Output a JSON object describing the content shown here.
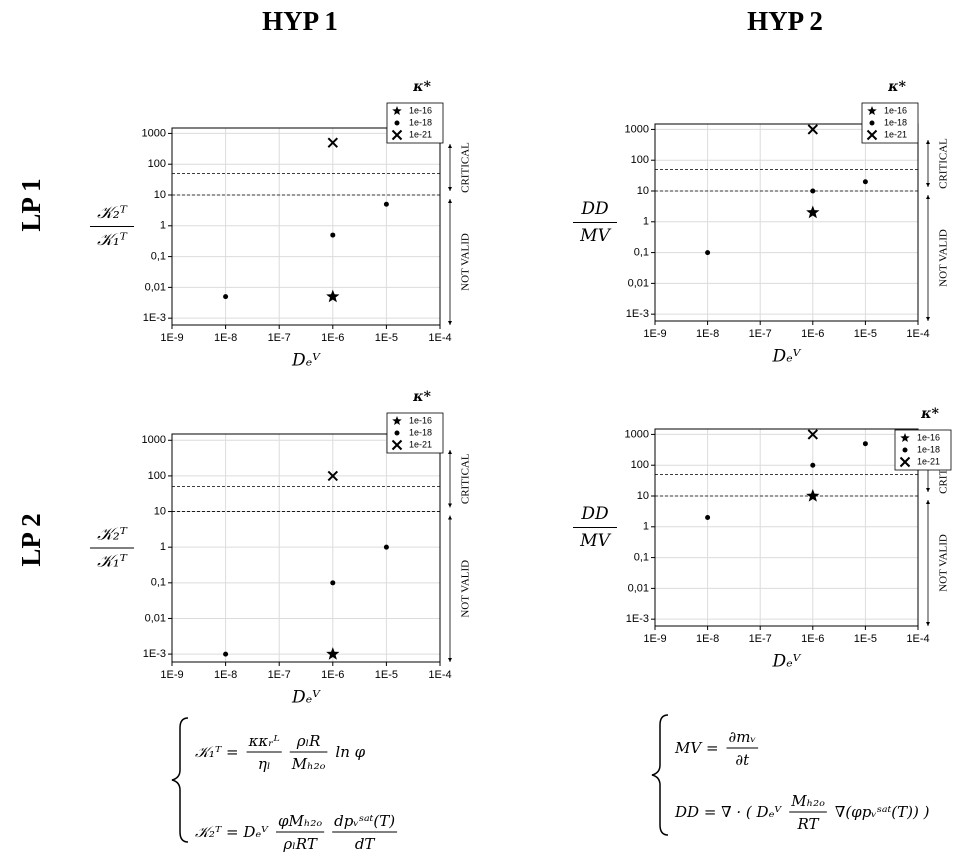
{
  "headers": {
    "columns": [
      "HYP 1",
      "HYP 2"
    ],
    "rows": [
      "LP 1",
      "LP 2"
    ]
  },
  "chart_data": [
    {
      "type": "scatter",
      "ylabel": {
        "num": "𝒦₂ᵀ",
        "den": "𝒦₁ᵀ"
      },
      "xlabel": "Dₑⱽ",
      "log_x": true,
      "log_y": true,
      "grid": true,
      "xlim": [
        1e-09,
        0.0001
      ],
      "ylim": [
        0.0006,
        1500
      ],
      "xticks": [
        {
          "value": 1e-09,
          "label": "1E-9"
        },
        {
          "value": 1e-08,
          "label": "1E-8"
        },
        {
          "value": 1e-07,
          "label": "1E-7"
        },
        {
          "value": 1e-06,
          "label": "1E-6"
        },
        {
          "value": 1e-05,
          "label": "1E-5"
        },
        {
          "value": 0.0001,
          "label": "1E-4"
        }
      ],
      "yticks": [
        1000,
        100,
        10,
        1,
        {
          "value": 0.1,
          "label": "0,1"
        },
        {
          "value": 0.01,
          "label": "0,01"
        },
        {
          "value": 0.001,
          "label": "1E-3"
        }
      ],
      "hlines": [
        50,
        10
      ],
      "annotations": [
        "CRITICAL",
        "NOT VALID"
      ],
      "legend_title": "κ*",
      "legend": "top-right",
      "series": [
        {
          "name": "1e-16",
          "marker": "star",
          "color": "#000000",
          "x": [
            1e-06
          ],
          "values": [
            0.005
          ]
        },
        {
          "name": "1e-18",
          "marker": "dot",
          "color": "#000000",
          "x": [
            1e-08,
            1e-06,
            1e-05
          ],
          "values": [
            0.005,
            0.5,
            5
          ]
        },
        {
          "name": "1e-21",
          "marker": "cross",
          "color": "#000000",
          "x": [
            1e-06
          ],
          "values": [
            500
          ]
        }
      ]
    },
    {
      "type": "scatter",
      "ylabel": {
        "num": "DD",
        "den": "MV"
      },
      "xlabel": "Dₑⱽ",
      "log_x": true,
      "log_y": true,
      "grid": true,
      "xlim": [
        1e-09,
        0.0001
      ],
      "ylim": [
        0.0006,
        1500
      ],
      "xticks": [
        {
          "value": 1e-09,
          "label": "1E-9"
        },
        {
          "value": 1e-08,
          "label": "1E-8"
        },
        {
          "value": 1e-07,
          "label": "1E-7"
        },
        {
          "value": 1e-06,
          "label": "1E-6"
        },
        {
          "value": 1e-05,
          "label": "1E-5"
        },
        {
          "value": 0.0001,
          "label": "1E-4"
        }
      ],
      "yticks": [
        1000,
        100,
        10,
        1,
        {
          "value": 0.1,
          "label": "0,1"
        },
        {
          "value": 0.01,
          "label": "0,01"
        },
        {
          "value": 0.001,
          "label": "1E-3"
        }
      ],
      "hlines": [
        50,
        10
      ],
      "annotations": [
        "CRITICAL",
        "NOT VALID"
      ],
      "legend_title": "κ*",
      "legend": "top-right",
      "series": [
        {
          "name": "1e-16",
          "marker": "star",
          "color": "#000000",
          "x": [
            1e-06
          ],
          "values": [
            2
          ]
        },
        {
          "name": "1e-18",
          "marker": "dot",
          "color": "#000000",
          "x": [
            1e-08,
            1e-06,
            1e-05
          ],
          "values": [
            0.1,
            10,
            20
          ]
        },
        {
          "name": "1e-21",
          "marker": "cross",
          "color": "#000000",
          "x": [
            1e-06
          ],
          "values": [
            1000
          ]
        }
      ]
    },
    {
      "type": "scatter",
      "ylabel": {
        "num": "𝒦₂ᵀ",
        "den": "𝒦₁ᵀ"
      },
      "xlabel": "Dₑⱽ",
      "log_x": true,
      "log_y": true,
      "grid": true,
      "xlim": [
        1e-09,
        0.0001
      ],
      "ylim": [
        0.0006,
        1500
      ],
      "xticks": [
        {
          "value": 1e-09,
          "label": "1E-9"
        },
        {
          "value": 1e-08,
          "label": "1E-8"
        },
        {
          "value": 1e-07,
          "label": "1E-7"
        },
        {
          "value": 1e-06,
          "label": "1E-6"
        },
        {
          "value": 1e-05,
          "label": "1E-5"
        },
        {
          "value": 0.0001,
          "label": "1E-4"
        }
      ],
      "yticks": [
        1000,
        100,
        10,
        1,
        {
          "value": 0.1,
          "label": "0,1"
        },
        {
          "value": 0.01,
          "label": "0,01"
        },
        {
          "value": 0.001,
          "label": "1E-3"
        }
      ],
      "hlines": [
        50,
        10
      ],
      "annotations": [
        "CRITICAL",
        "NOT VALID"
      ],
      "legend_title": "κ*",
      "legend": "top-right",
      "series": [
        {
          "name": "1e-16",
          "marker": "star",
          "color": "#000000",
          "x": [
            1e-06
          ],
          "values": [
            0.001
          ]
        },
        {
          "name": "1e-18",
          "marker": "dot",
          "color": "#000000",
          "x": [
            1e-08,
            1e-06,
            1e-05
          ],
          "values": [
            0.001,
            0.1,
            1
          ]
        },
        {
          "name": "1e-21",
          "marker": "cross",
          "color": "#000000",
          "x": [
            1e-06
          ],
          "values": [
            100
          ]
        }
      ]
    },
    {
      "type": "scatter",
      "ylabel": {
        "num": "DD",
        "den": "MV"
      },
      "xlabel": "Dₑⱽ",
      "log_x": true,
      "log_y": true,
      "grid": true,
      "xlim": [
        1e-09,
        0.0001
      ],
      "ylim": [
        0.0006,
        1500
      ],
      "xticks": [
        {
          "value": 1e-09,
          "label": "1E-9"
        },
        {
          "value": 1e-08,
          "label": "1E-8"
        },
        {
          "value": 1e-07,
          "label": "1E-7"
        },
        {
          "value": 1e-06,
          "label": "1E-6"
        },
        {
          "value": 1e-05,
          "label": "1E-5"
        },
        {
          "value": 0.0001,
          "label": "1E-4"
        }
      ],
      "yticks": [
        1000,
        100,
        10,
        1,
        {
          "value": 0.1,
          "label": "0,1"
        },
        {
          "value": 0.01,
          "label": "0,01"
        },
        {
          "value": 0.001,
          "label": "1E-3"
        }
      ],
      "hlines": [
        50,
        10
      ],
      "annotations": [
        "CRITICAL",
        "NOT VALID"
      ],
      "legend_title": "κ*",
      "legend": "top-right",
      "series": [
        {
          "name": "1e-16",
          "marker": "star",
          "color": "#000000",
          "x": [
            1e-06
          ],
          "values": [
            10
          ]
        },
        {
          "name": "1e-18",
          "marker": "dot",
          "color": "#000000",
          "x": [
            1e-08,
            1e-06,
            1e-05
          ],
          "values": [
            2,
            100,
            500
          ]
        },
        {
          "name": "1e-21",
          "marker": "cross",
          "color": "#000000",
          "x": [
            1e-06
          ],
          "values": [
            1000
          ]
        }
      ]
    }
  ],
  "equations": [
    {
      "lines": [
        [
          "𝒦₁ᵀ =",
          {
            "num": "κκᵣᴸ",
            "den": "ηₗ"
          },
          {
            "num": "ρₗR",
            "den": "Mₕ₂ₒ"
          },
          "ln φ"
        ],
        [
          "𝒦₂ᵀ = Dₑⱽ",
          {
            "num": "φMₕ₂ₒ",
            "den": "ρₗRT"
          },
          {
            "num": "dpᵥˢᵃᵗ(T)",
            "den": "dT"
          }
        ]
      ]
    },
    {
      "lines": [
        [
          "MV =",
          {
            "num": "∂mᵥ",
            "den": "∂t"
          }
        ],
        [
          "DD = ∇ · ( Dₑⱽ",
          {
            "num": "Mₕ₂ₒ",
            "den": "RT"
          },
          "∇(φpᵥˢᵃᵗ(T)) )"
        ]
      ]
    }
  ]
}
